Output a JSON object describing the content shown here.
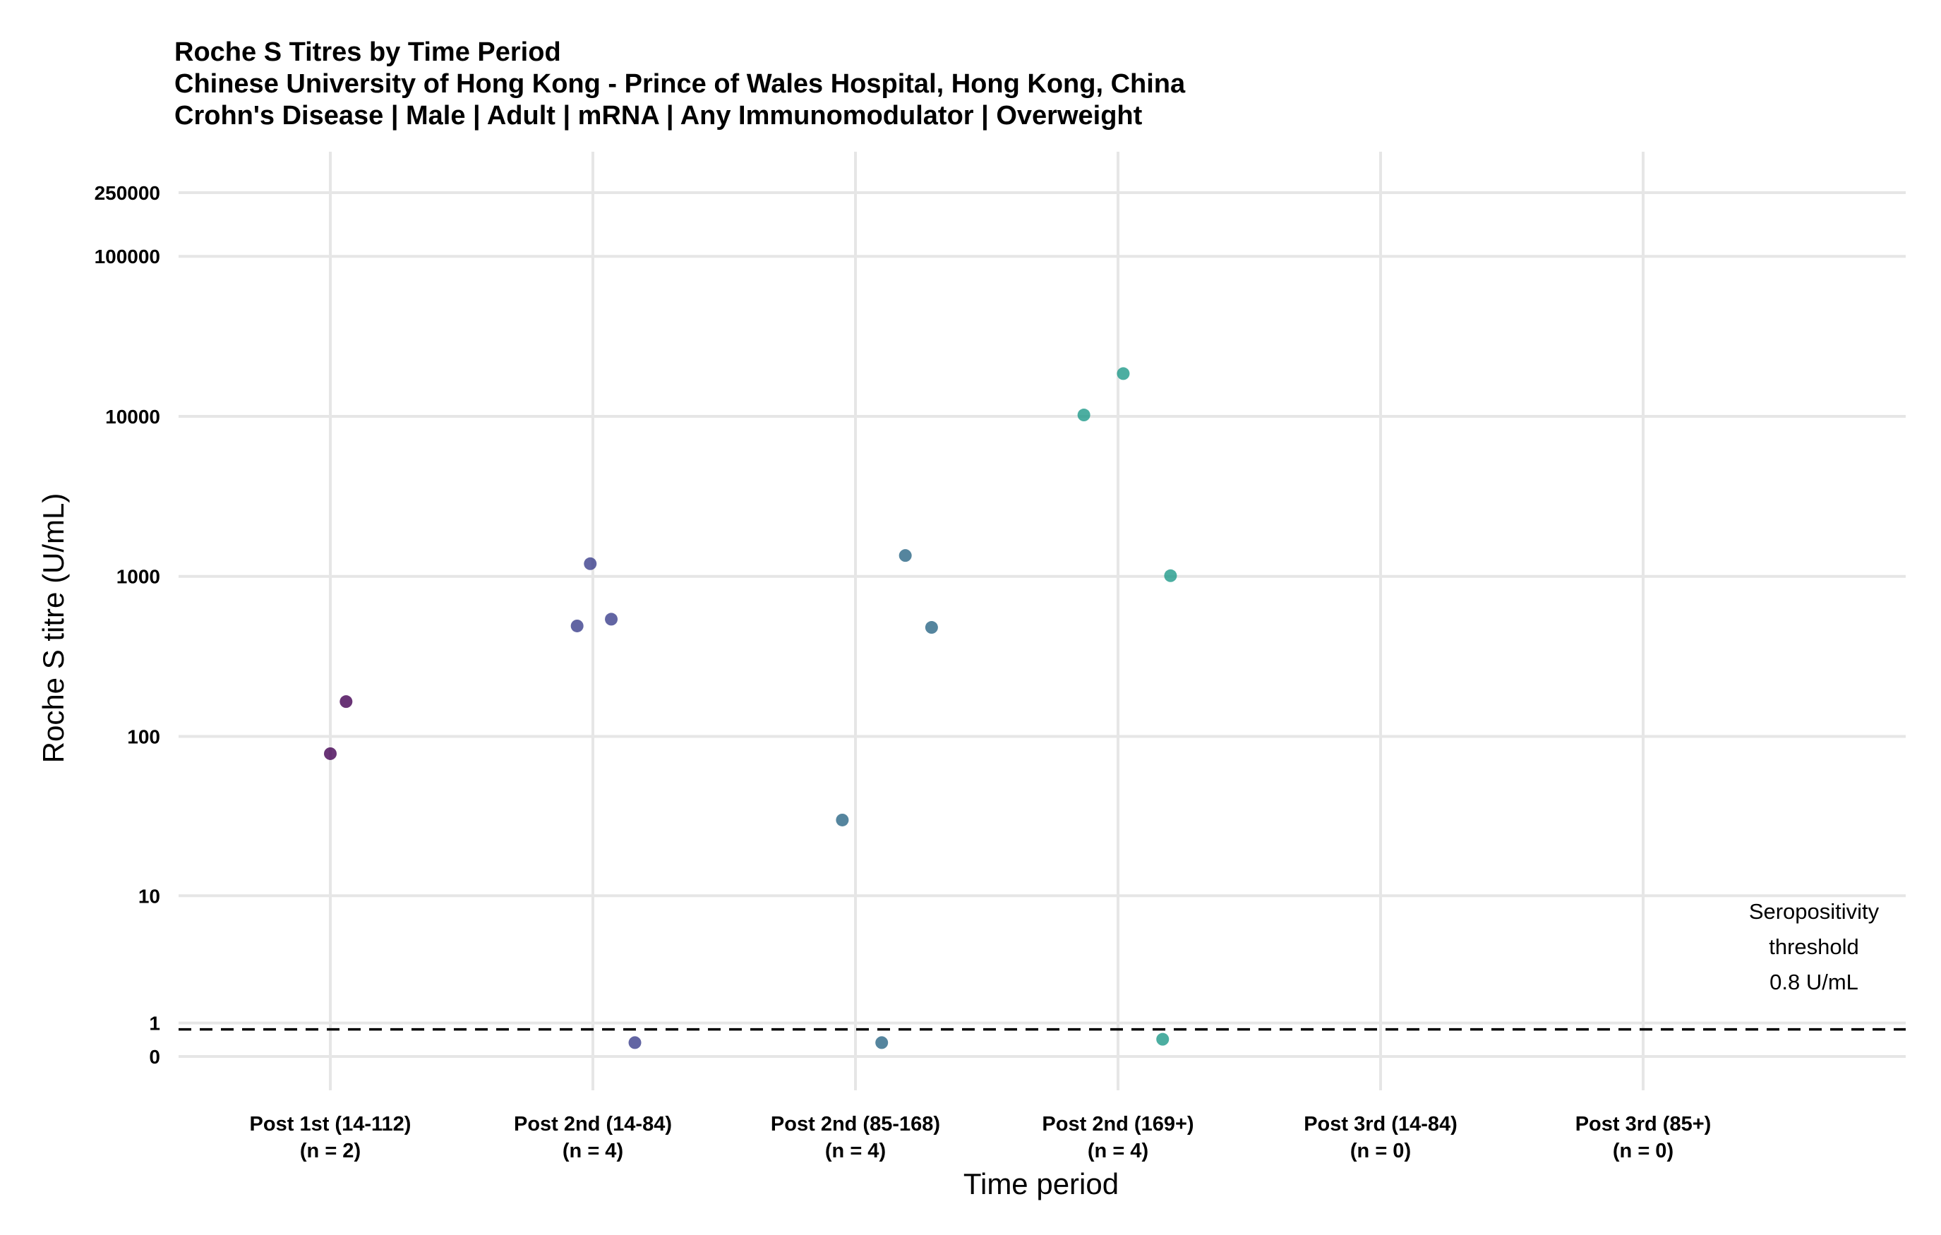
{
  "chart_data": {
    "type": "scatter",
    "title": "Roche S Titres by Time Period",
    "subtitle_1": "Chinese University of Hong Kong - Prince of Wales Hospital, Hong Kong, China",
    "subtitle_2": "Crohn's Disease | Male | Adult | mRNA | Any Immunomodulator | Overweight",
    "xlabel": "Time period",
    "ylabel": "Roche S titre (U/mL)",
    "y_scale": "pseudo-log",
    "ylim": [
      -0.3,
      500000
    ],
    "yticks": [
      {
        "label": "0",
        "value": 0
      },
      {
        "label": "1",
        "value": 1
      },
      {
        "label": "10",
        "value": 10
      },
      {
        "label": "100",
        "value": 100
      },
      {
        "label": "1000",
        "value": 1000
      },
      {
        "label": "10000",
        "value": 10000
      },
      {
        "label": "100000",
        "value": 100000
      },
      {
        "label": "250000",
        "value": 250000
      }
    ],
    "categories": [
      {
        "label": "Post 1st (14-112)",
        "n_label": "(n = 2)",
        "color": "#440154"
      },
      {
        "label": "Post 2nd (14-84)",
        "n_label": "(n = 4)",
        "color": "#3b3f8c"
      },
      {
        "label": "Post 2nd (85-168)",
        "n_label": "(n = 4)",
        "color": "#2a6686"
      },
      {
        "label": "Post 2nd (169+)",
        "n_label": "(n = 4)",
        "color": "#1f9a8a"
      },
      {
        "label": "Post 3rd (14-84)",
        "n_label": "(n = 0)",
        "color": "#35b779"
      },
      {
        "label": "Post 3rd (85+)",
        "n_label": "(n = 0)",
        "color": "#6ece58"
      }
    ],
    "points": [
      {
        "category": 0,
        "jitter": 0.0,
        "y": 78
      },
      {
        "category": 0,
        "jitter": 0.06,
        "y": 165
      },
      {
        "category": 1,
        "jitter": -0.06,
        "y": 490
      },
      {
        "category": 1,
        "jitter": -0.01,
        "y": 1200
      },
      {
        "category": 1,
        "jitter": 0.07,
        "y": 540
      },
      {
        "category": 1,
        "jitter": 0.16,
        "y": 0.4
      },
      {
        "category": 2,
        "jitter": -0.05,
        "y": 30
      },
      {
        "category": 2,
        "jitter": 0.19,
        "y": 1350
      },
      {
        "category": 2,
        "jitter": 0.29,
        "y": 480
      },
      {
        "category": 2,
        "jitter": 0.1,
        "y": 0.4
      },
      {
        "category": 3,
        "jitter": -0.13,
        "y": 10200
      },
      {
        "category": 3,
        "jitter": 0.02,
        "y": 18500
      },
      {
        "category": 3,
        "jitter": 0.2,
        "y": 1010
      },
      {
        "category": 3,
        "jitter": 0.17,
        "y": 0.5
      }
    ],
    "threshold": {
      "value": 0.8,
      "style": "dashed",
      "label_lines": [
        "Seropositivity",
        "threshold",
        "0.8 U/mL"
      ]
    },
    "grid": true,
    "legend": "none"
  }
}
